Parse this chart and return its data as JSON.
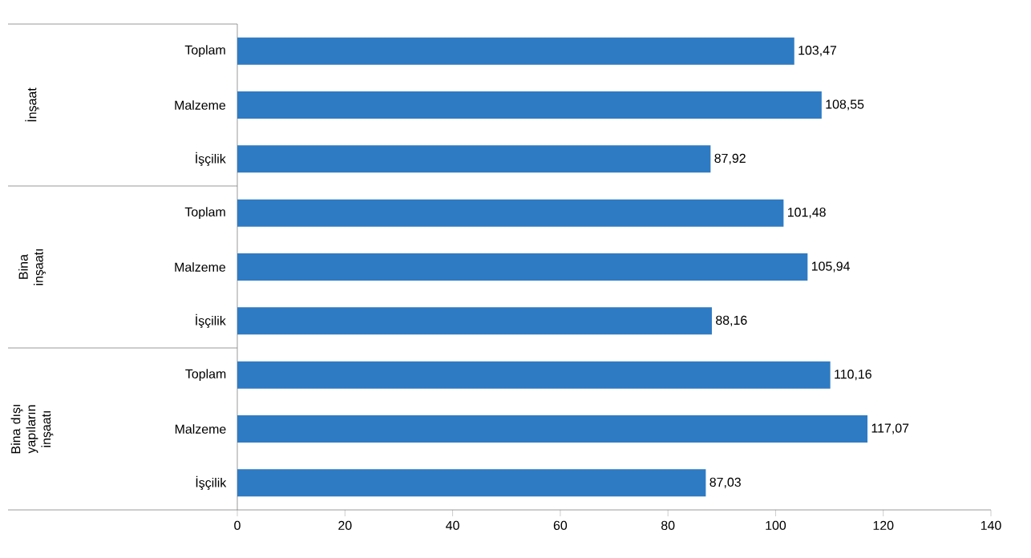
{
  "chart_data": [
    {
      "type": "bar",
      "orientation": "horizontal",
      "ylabel": "İnşaat",
      "categories": [
        "Toplam",
        "Malzeme",
        "İşçilik"
      ],
      "values": [
        103.47,
        108.55,
        87.92
      ],
      "value_labels": [
        "103,47",
        "108,55",
        "87,92"
      ],
      "color": "#2e7bc4",
      "xlim": [
        0,
        140
      ],
      "xticks": [
        0,
        20,
        40,
        60,
        80,
        100,
        120,
        140
      ],
      "tick_labels": "y"
    },
    {
      "type": "bar",
      "orientation": "horizontal",
      "ylabel": "Bina inşaatı",
      "categories": [
        "Toplam",
        "Malzeme",
        "İşçilik"
      ],
      "values": [
        101.48,
        105.94,
        88.16
      ],
      "value_labels": [
        "101,48",
        "105,94",
        "88,16"
      ],
      "color": "#2e7bc4",
      "xlim": [
        0,
        140
      ],
      "xticks": [
        0,
        20,
        40,
        60,
        80,
        100,
        120,
        140
      ],
      "tick_labels": "y"
    },
    {
      "type": "bar",
      "orientation": "horizontal",
      "ylabel": "Bina dışı yapıların inşaatı",
      "categories": [
        "Toplam",
        "Malzeme",
        "İşçilik"
      ],
      "values": [
        110.16,
        117.07,
        87.03
      ],
      "value_labels": [
        "110,16",
        "117,07",
        "87,03"
      ],
      "color": "#2e7bc4",
      "xlim": [
        0,
        140
      ],
      "xticks": [
        0,
        20,
        40,
        60,
        80,
        100,
        120,
        140
      ]
    }
  ]
}
